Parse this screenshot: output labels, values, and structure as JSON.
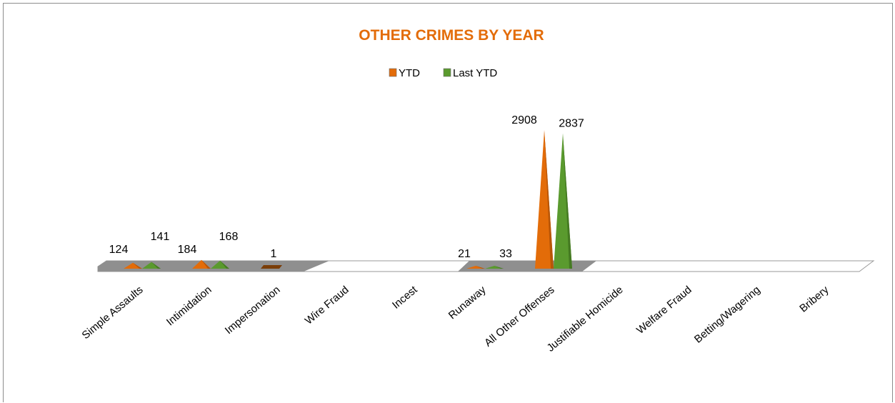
{
  "chart_data": {
    "type": "bar",
    "style": "3d-cone",
    "title": "OTHER CRIMES BY YEAR",
    "xlabel": "",
    "ylabel": "",
    "legend": "top",
    "grid": false,
    "categories": [
      "Simple Assaults",
      "Intimidation",
      "Impersonation",
      "Wire Fraud",
      "Incest",
      "Runaway",
      "All Other Offenses",
      "Justifiable Homicide",
      "Welfare Fraud",
      "Betting/Wagering",
      "Bribery"
    ],
    "series": [
      {
        "name": "YTD",
        "color": "#e36c09",
        "values": [
          124,
          184,
          1,
          0,
          0,
          21,
          2908,
          0,
          0,
          0,
          0
        ]
      },
      {
        "name": "Last YTD",
        "color": "#5a9a2e",
        "values": [
          141,
          168,
          0,
          0,
          0,
          33,
          2837,
          0,
          0,
          0,
          0
        ]
      }
    ],
    "data_labels": [
      {
        "category": "Simple Assaults",
        "series": "YTD",
        "text": "124"
      },
      {
        "category": "Simple Assaults",
        "series": "Last YTD",
        "text": "141"
      },
      {
        "category": "Intimidation",
        "series": "YTD",
        "text": "184"
      },
      {
        "category": "Intimidation",
        "series": "Last YTD",
        "text": "168"
      },
      {
        "category": "Impersonation",
        "series": "YTD",
        "text": "1"
      },
      {
        "category": "Runaway",
        "series": "YTD",
        "text": "21"
      },
      {
        "category": "Runaway",
        "series": "Last YTD",
        "text": "33"
      },
      {
        "category": "All Other Offenses",
        "series": "YTD",
        "text": "2908"
      },
      {
        "category": "All Other Offenses",
        "series": "Last YTD",
        "text": "2837"
      }
    ],
    "ylim": [
      0,
      3000
    ]
  }
}
